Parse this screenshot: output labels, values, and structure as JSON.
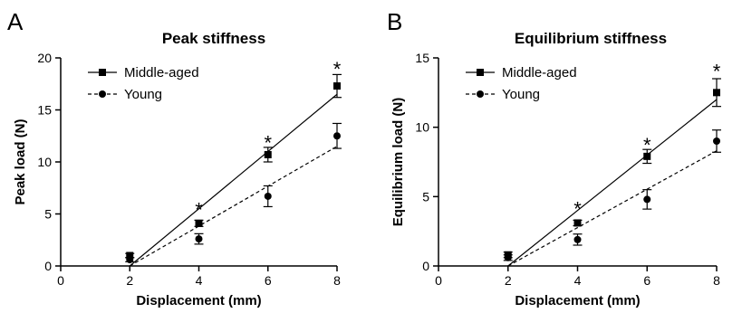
{
  "chart_data": [
    {
      "panel": "A",
      "type": "scatter",
      "title": "Peak stiffness",
      "xlabel": "Displacement (mm)",
      "ylabel": "Peak load (N)",
      "xlim": [
        0,
        8
      ],
      "ylim": [
        0,
        20
      ],
      "xticks": [
        0,
        2,
        4,
        6,
        8
      ],
      "yticks": [
        0,
        5,
        10,
        15,
        20
      ],
      "legend": "top-left",
      "grid": false,
      "series": [
        {
          "name": "Middle-aged",
          "marker": "square",
          "line": "solid",
          "x": [
            2,
            4,
            6,
            8
          ],
          "y": [
            1.0,
            4.1,
            10.7,
            17.3
          ],
          "err": [
            0.2,
            0.3,
            0.7,
            1.1
          ],
          "fit": {
            "x": [
              2,
              8
            ],
            "y": [
              0,
              16.5
            ]
          }
        },
        {
          "name": "Young",
          "marker": "circle",
          "line": "dashed",
          "x": [
            2,
            4,
            6,
            8
          ],
          "y": [
            0.6,
            2.6,
            6.7,
            12.5
          ],
          "err": [
            0.2,
            0.5,
            1.0,
            1.2
          ],
          "fit": {
            "x": [
              2,
              8
            ],
            "y": [
              0,
              11.5
            ]
          }
        }
      ],
      "annotations": [
        {
          "text": "*",
          "x": 4,
          "y": 5.8
        },
        {
          "text": "*",
          "x": 6,
          "y": 12.2
        },
        {
          "text": "*",
          "x": 8,
          "y": 19.3
        }
      ]
    },
    {
      "panel": "B",
      "type": "scatter",
      "title": "Equilibrium stiffness",
      "xlabel": "Displacement (mm)",
      "ylabel": "Equilibrium load (N)",
      "xlim": [
        0,
        8
      ],
      "ylim": [
        0,
        15
      ],
      "xticks": [
        0,
        2,
        4,
        6,
        8
      ],
      "yticks": [
        0,
        5,
        10,
        15
      ],
      "legend": "top-left",
      "grid": false,
      "series": [
        {
          "name": "Middle-aged",
          "marker": "square",
          "line": "solid",
          "x": [
            2,
            4,
            6,
            8
          ],
          "y": [
            0.8,
            3.1,
            7.9,
            12.5
          ],
          "err": [
            0.2,
            0.2,
            0.5,
            1.0
          ],
          "fit": {
            "x": [
              2,
              8
            ],
            "y": [
              0,
              12.0
            ]
          }
        },
        {
          "name": "Young",
          "marker": "circle",
          "line": "dashed",
          "x": [
            2,
            4,
            6,
            8
          ],
          "y": [
            0.6,
            1.9,
            4.8,
            9.0
          ],
          "err": [
            0.2,
            0.4,
            0.7,
            0.8
          ],
          "fit": {
            "x": [
              2,
              8
            ],
            "y": [
              0,
              8.3
            ]
          }
        }
      ],
      "annotations": [
        {
          "text": "*",
          "x": 4,
          "y": 4.4
        },
        {
          "text": "*",
          "x": 6,
          "y": 9.0
        },
        {
          "text": "*",
          "x": 8,
          "y": 14.3
        }
      ]
    }
  ]
}
